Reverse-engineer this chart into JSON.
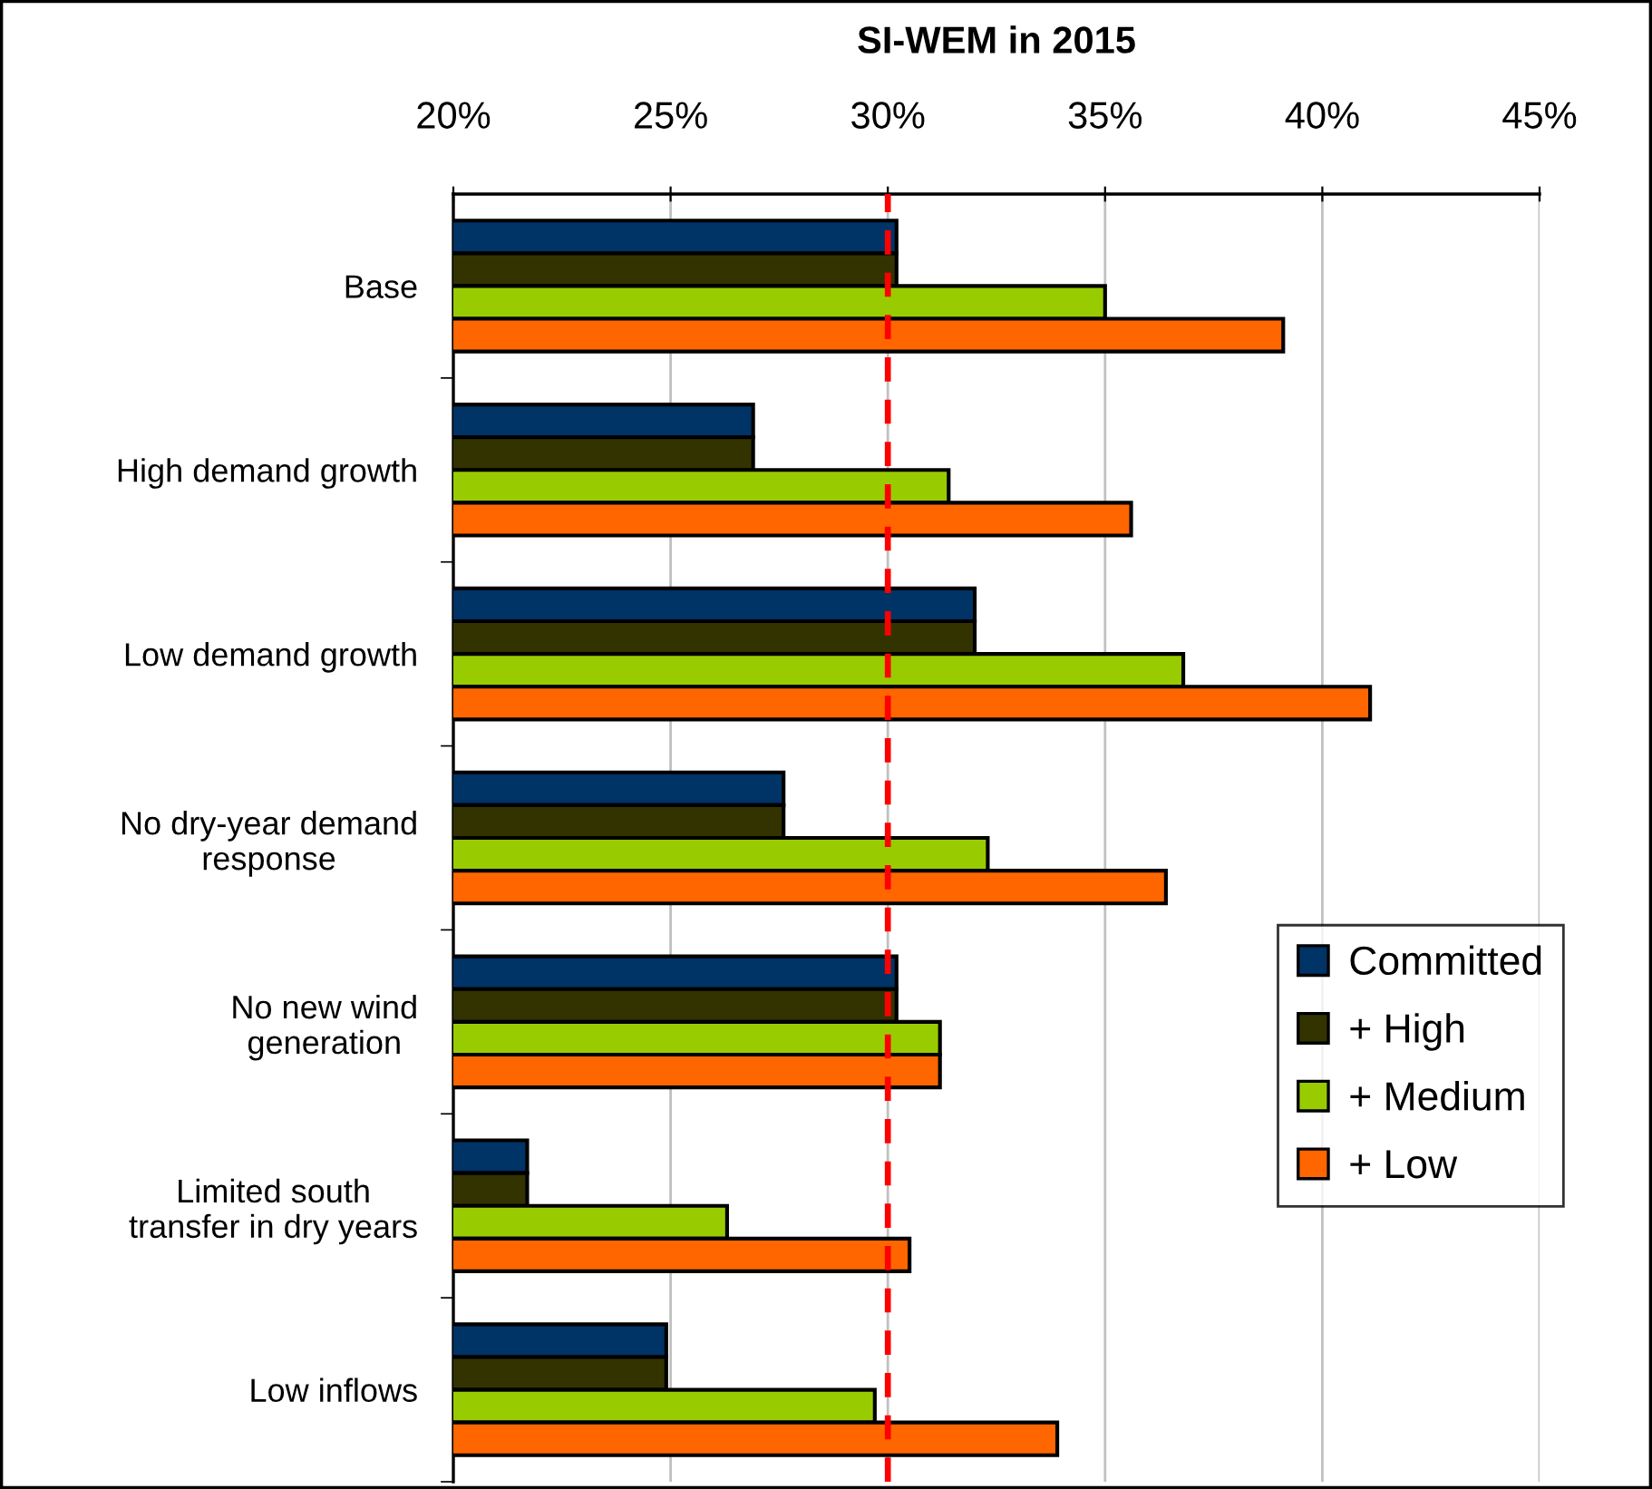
{
  "chart_data": {
    "type": "bar",
    "orientation": "horizontal",
    "title": "SI-WEM in 2015",
    "categories": [
      "Base",
      "High demand growth",
      "Low demand growth",
      "No dry-year demand\nresponse",
      "No new wind\ngeneration",
      "Limited south\ntransfer in dry years",
      "Low inflows"
    ],
    "series": [
      {
        "name": "Committed",
        "color": "#003366",
        "values": [
          30.2,
          26.9,
          32.0,
          27.6,
          30.2,
          21.7,
          24.9
        ]
      },
      {
        "name": "+ High",
        "color": "#333300",
        "values": [
          30.2,
          26.9,
          32.0,
          27.6,
          30.2,
          21.7,
          24.9
        ]
      },
      {
        "name": "+ Medium",
        "color": "#99cc00",
        "values": [
          35.0,
          31.4,
          36.8,
          32.3,
          31.2,
          26.3,
          29.7
        ]
      },
      {
        "name": "+ Low",
        "color": "#ff6600",
        "values": [
          39.1,
          35.6,
          41.1,
          36.4,
          31.2,
          30.5,
          33.9
        ]
      }
    ],
    "xlim": [
      20,
      45
    ],
    "xticks": [
      {
        "value": 20,
        "label": "20%"
      },
      {
        "value": 25,
        "label": "25%"
      },
      {
        "value": 30,
        "label": "30%"
      },
      {
        "value": 35,
        "label": "35%"
      },
      {
        "value": 40,
        "label": "40%"
      },
      {
        "value": 45,
        "label": "45%"
      }
    ],
    "ref_lines": [
      {
        "axis": "x",
        "value": 30,
        "color": "#ff0000",
        "line_style": "dashed"
      }
    ],
    "grid": "x",
    "legend": "right"
  }
}
